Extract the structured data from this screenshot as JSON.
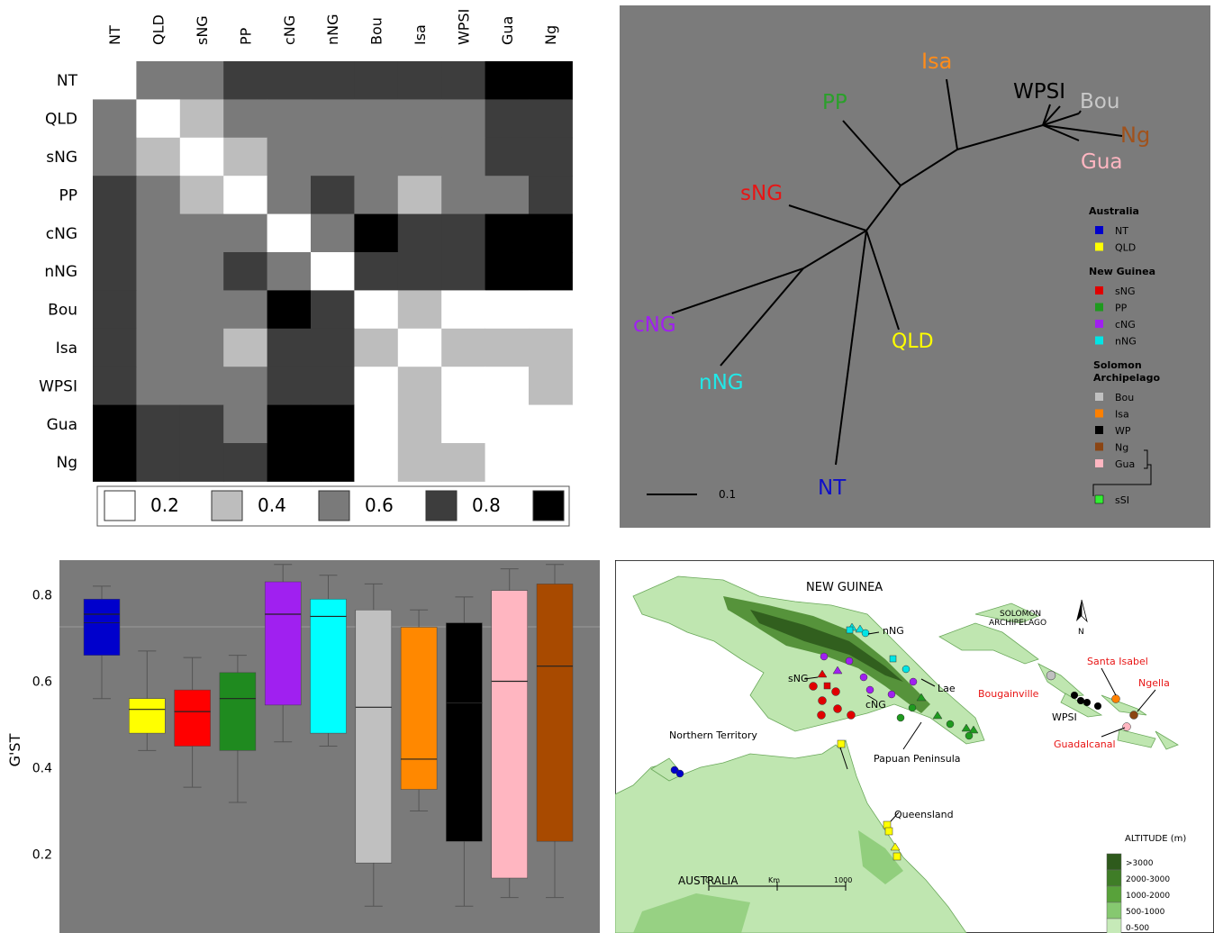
{
  "heatmap": {
    "labels": [
      "NT",
      "QLD",
      "sNG",
      "PP",
      "cNG",
      "nNG",
      "Bou",
      "Isa",
      "WPSI",
      "Gua",
      "Ng"
    ],
    "matrix": [
      [
        0.2,
        0.6,
        0.6,
        0.8,
        0.8,
        0.8,
        0.8,
        0.8,
        0.8,
        1.0,
        1.0
      ],
      [
        0.6,
        0.2,
        0.4,
        0.6,
        0.6,
        0.6,
        0.6,
        0.6,
        0.6,
        0.8,
        0.8
      ],
      [
        0.6,
        0.4,
        0.2,
        0.4,
        0.6,
        0.6,
        0.6,
        0.6,
        0.6,
        0.8,
        0.8
      ],
      [
        0.8,
        0.6,
        0.4,
        0.2,
        0.6,
        0.8,
        0.6,
        0.4,
        0.6,
        0.6,
        0.8
      ],
      [
        0.8,
        0.6,
        0.6,
        0.6,
        0.2,
        0.6,
        1.0,
        0.8,
        0.8,
        1.0,
        1.0
      ],
      [
        0.8,
        0.6,
        0.6,
        0.8,
        0.6,
        0.2,
        0.8,
        0.8,
        0.8,
        1.0,
        1.0
      ],
      [
        0.8,
        0.6,
        0.6,
        0.6,
        1.0,
        0.8,
        0.2,
        0.4,
        0.2,
        0.2,
        0.2
      ],
      [
        0.8,
        0.6,
        0.6,
        0.4,
        0.8,
        0.8,
        0.4,
        0.2,
        0.4,
        0.4,
        0.4
      ],
      [
        0.8,
        0.6,
        0.6,
        0.6,
        0.8,
        0.8,
        0.2,
        0.4,
        0.2,
        0.2,
        0.4
      ],
      [
        1.0,
        0.8,
        0.8,
        0.6,
        1.0,
        1.0,
        0.2,
        0.4,
        0.2,
        0.2,
        0.2
      ],
      [
        1.0,
        0.8,
        0.8,
        0.8,
        1.0,
        1.0,
        0.2,
        0.4,
        0.4,
        0.2,
        0.2
      ]
    ],
    "scale": [
      {
        "value": "0.2",
        "color": "#ffffff"
      },
      {
        "value": "0.4",
        "color": "#bdbdbd"
      },
      {
        "value": "0.6",
        "color": "#7a7a7a"
      },
      {
        "value": "0.8",
        "color": "#3d3d3d"
      },
      {
        "value": "",
        "color": "#000000"
      }
    ]
  },
  "tree": {
    "leaves": [
      {
        "name": "Isa",
        "color": "#ff8c1a"
      },
      {
        "name": "WPSI",
        "color": "#000000"
      },
      {
        "name": "Bou",
        "color": "#c8c8c8"
      },
      {
        "name": "Ng",
        "color": "#a0521c"
      },
      {
        "name": "Gua",
        "color": "#ffb6c1"
      },
      {
        "name": "PP",
        "color": "#2aa02a"
      },
      {
        "name": "sNG",
        "color": "#e81515"
      },
      {
        "name": "cNG",
        "color": "#a020f0"
      },
      {
        "name": "nNG",
        "color": "#21e8e8"
      },
      {
        "name": "QLD",
        "color": "#ffff00"
      },
      {
        "name": "NT",
        "color": "#1010c8"
      }
    ],
    "scalebar": "0.1",
    "legend": [
      {
        "header": "Australia",
        "items": [
          {
            "label": "NT",
            "color": "#0000cc"
          },
          {
            "label": "QLD",
            "color": "#ffff00"
          }
        ]
      },
      {
        "header": "New Guinea",
        "items": [
          {
            "label": "sNG",
            "color": "#e00000"
          },
          {
            "label": "PP",
            "color": "#1f9a1f"
          },
          {
            "label": "cNG",
            "color": "#a020f0"
          },
          {
            "label": "nNG",
            "color": "#00e5e5"
          }
        ]
      },
      {
        "header": "Solomon Archipelago",
        "items": [
          {
            "label": "Bou",
            "color": "#c0c0c0"
          },
          {
            "label": "Isa",
            "color": "#ff8000"
          },
          {
            "label": "WP",
            "color": "#000000"
          },
          {
            "label": "Ng",
            "color": "#8b4513"
          },
          {
            "label": "Gua",
            "color": "#ffb6c1"
          }
        ]
      }
    ],
    "legend_extra": {
      "label": "sSI",
      "color": "#33ee33"
    }
  },
  "chart_data": {
    "type": "boxplot",
    "ylabel": "G'ST",
    "ylim": [
      0.0,
      0.9
    ],
    "yticks": [
      "0.2",
      "0.4",
      "0.6",
      "0.8"
    ],
    "boxes": [
      {
        "color": "#0000cc",
        "whisker_low": 0.56,
        "q1": 0.66,
        "median": 0.755,
        "q3": 0.79,
        "whisker_high": 0.82,
        "mean": 0.735
      },
      {
        "color": "#ffff00",
        "whisker_low": 0.44,
        "q1": 0.48,
        "median": 0.535,
        "q3": 0.56,
        "whisker_high": 0.67
      },
      {
        "color": "#ff0000",
        "whisker_low": 0.355,
        "q1": 0.45,
        "median": 0.53,
        "q3": 0.58,
        "whisker_high": 0.655
      },
      {
        "color": "#1f8a1f",
        "whisker_low": 0.32,
        "q1": 0.44,
        "median": 0.56,
        "q3": 0.62,
        "whisker_high": 0.66
      },
      {
        "color": "#a020f0",
        "whisker_low": 0.46,
        "q1": 0.545,
        "median": 0.755,
        "q3": 0.83,
        "whisker_high": 0.87
      },
      {
        "color": "#00ffff",
        "whisker_low": 0.45,
        "q1": 0.48,
        "median": 0.75,
        "q3": 0.79,
        "whisker_high": 0.845
      },
      {
        "color": "#c0c0c0",
        "whisker_low": 0.08,
        "q1": 0.18,
        "median": 0.54,
        "q3": 0.765,
        "whisker_high": 0.825
      },
      {
        "color": "#ff8800",
        "whisker_low": 0.3,
        "q1": 0.35,
        "median": 0.42,
        "q3": 0.725,
        "whisker_high": 0.765
      },
      {
        "color": "#000000",
        "whisker_low": 0.08,
        "q1": 0.23,
        "median": 0.55,
        "q3": 0.735,
        "whisker_high": 0.795
      },
      {
        "color": "#ffb6c1",
        "whisker_low": 0.1,
        "q1": 0.145,
        "median": 0.6,
        "q3": 0.81,
        "whisker_high": 0.86
      },
      {
        "color": "#a84a00",
        "whisker_low": 0.1,
        "q1": 0.23,
        "median": 0.635,
        "q3": 0.825,
        "whisker_high": 0.87
      }
    ]
  },
  "map": {
    "labels": {
      "new_guinea": "NEW GUINEA",
      "nng": "nNG",
      "sng": "sNG",
      "cng": "cNG",
      "lae": "Lae",
      "papuan": "Papuan Peninsula",
      "solomon": "SOLOMON\nARCHIPELAGO",
      "bougainville": "Bougainville",
      "santa_isabel": "Santa Isabel",
      "ngella": "Ngella",
      "wpsi": "WPSI",
      "guadalcanal": "Guadalcanal",
      "nt": "Northern Territory",
      "queensland": "Queensland",
      "australia": "AUSTRALIA",
      "km": "Km",
      "k0": "0",
      "k1000": "1000",
      "north": "N"
    },
    "altitude_title": "ALTITUDE (m)",
    "altitude": [
      {
        "label": ">3000",
        "color": "#2e5a1c"
      },
      {
        "label": "2000-3000",
        "color": "#3f7d27"
      },
      {
        "label": "1000-2000",
        "color": "#58a23a"
      },
      {
        "label": "500-1000",
        "color": "#86c870"
      },
      {
        "label": "0-500",
        "color": "#c6eab8"
      }
    ]
  }
}
